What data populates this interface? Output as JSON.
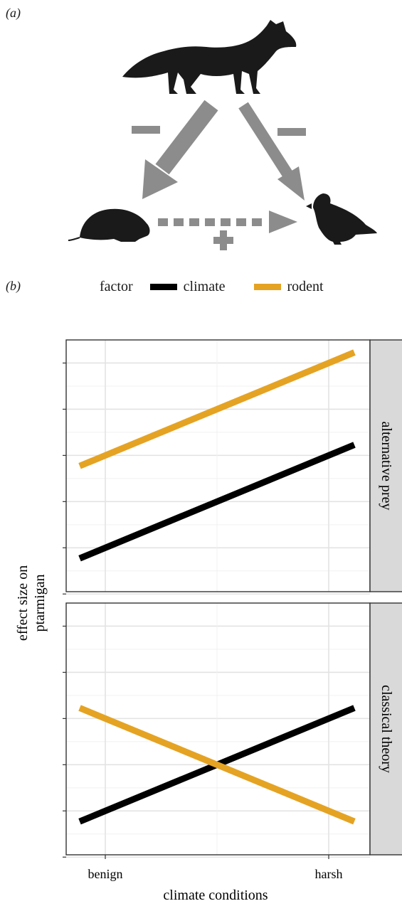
{
  "panel_a_label": "(a)",
  "panel_b_label": "(b)",
  "icons": [
    "fox-icon",
    "vole-icon",
    "ptarmigan-icon",
    "minus-icon",
    "plus-icon"
  ],
  "diagram": {
    "arrow_color": "#8c8c8c",
    "fox_to_rodent_sign": "–",
    "fox_to_ptarmigan_sign": "–",
    "rodent_to_ptarmigan_sign": "+"
  },
  "legend": {
    "title": "factor",
    "items": [
      {
        "label": "climate",
        "color": "#000000"
      },
      {
        "label": "rodent",
        "color": "#e5a323"
      }
    ]
  },
  "chart_data": {
    "type": "line",
    "xlabel": "climate conditions",
    "ylabel": "effect size on ptarmigan",
    "categories": [
      "benign",
      "harsh"
    ],
    "grid": true,
    "legend_placement": "top",
    "facets": [
      {
        "strip": "alternative prey",
        "series": [
          {
            "name": "climate",
            "color": "#000000",
            "values": [
              1,
              3
            ]
          },
          {
            "name": "rodent",
            "color": "#e5a323",
            "values": [
              3,
              5
            ]
          }
        ]
      },
      {
        "strip": "classical theory",
        "series": [
          {
            "name": "climate",
            "color": "#000000",
            "values": [
              1,
              3
            ]
          },
          {
            "name": "rodent",
            "color": "#e5a323",
            "values": [
              3,
              1
            ]
          }
        ]
      }
    ]
  }
}
